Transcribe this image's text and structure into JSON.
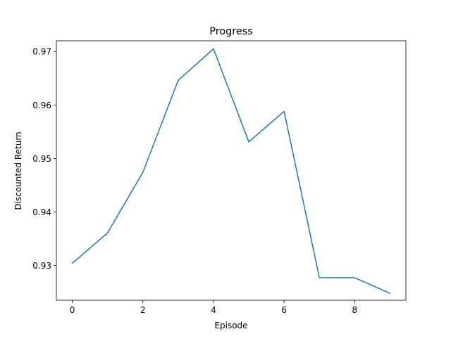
{
  "chart_data": {
    "type": "line",
    "title": "Progress",
    "xlabel": "Episode",
    "ylabel": "Discounted Return",
    "x": [
      0,
      1,
      2,
      3,
      4,
      5,
      6,
      7,
      8,
      9
    ],
    "series": [
      {
        "values": [
          0.9304,
          0.9361,
          0.9474,
          0.9646,
          0.9705,
          0.9531,
          0.9588,
          0.9277,
          0.9277,
          0.9248
        ],
        "color": "#1f77b4"
      }
    ],
    "xlim": [
      -0.45,
      9.45
    ],
    "ylim": [
      0.9235,
      0.972
    ],
    "xticks": [
      0,
      2,
      4,
      6,
      8
    ],
    "yticks": [
      0.93,
      0.94,
      0.95,
      0.96,
      0.97
    ],
    "ytick_labels": [
      "0.93",
      "0.94",
      "0.95",
      "0.96",
      "0.97"
    ],
    "grid": false,
    "legend": "none"
  }
}
